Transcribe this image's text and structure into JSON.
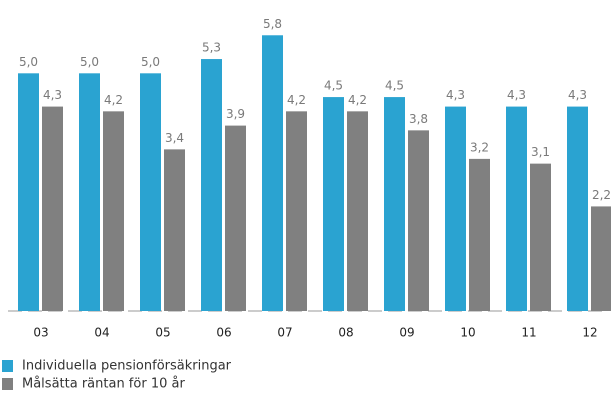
{
  "chart_data": {
    "type": "bar",
    "categories": [
      "03",
      "04",
      "05",
      "06",
      "07",
      "08",
      "09",
      "10",
      "11",
      "12"
    ],
    "series": [
      {
        "name": "Individuella pensionförsäkringar",
        "color": "#2aa3d1",
        "values": [
          5.0,
          5.0,
          5.0,
          5.3,
          5.8,
          4.5,
          4.5,
          4.3,
          4.3,
          4.3
        ],
        "value_labels": [
          "5,0",
          "5,0",
          "5,0",
          "5,3",
          "5,8",
          "4,5",
          "4,5",
          "4,3",
          "4,3",
          "4,3"
        ]
      },
      {
        "name": "Målsätta räntan för 10 år",
        "color": "#808080",
        "values": [
          4.3,
          4.2,
          3.4,
          3.9,
          4.2,
          4.2,
          3.8,
          3.2,
          3.1,
          2.2
        ],
        "value_labels": [
          "4,3",
          "4,2",
          "3,4",
          "3,9",
          "4,2",
          "4,2",
          "3,8",
          "3,2",
          "3,1",
          "2,2"
        ]
      }
    ],
    "ylim": [
      0,
      6.5
    ]
  }
}
